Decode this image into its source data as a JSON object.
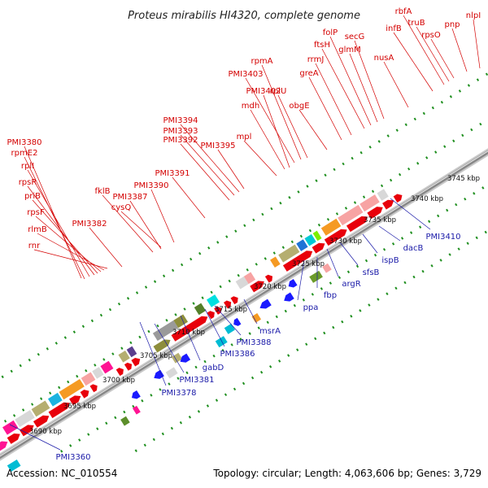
{
  "title": "Proteus mirabilis HI4320, complete genome",
  "footer": {
    "accession": "Accession: NC_010554",
    "summary": "Topology: circular; Length: 4,063,606 bp; Genes: 3,729"
  },
  "scale_labels": [
    "3690 kbp",
    "3695 kbp",
    "3700 kbp",
    "3705 kbp",
    "3710 kbp",
    "3715 kbp",
    "3720 kbp",
    "3725 kbp",
    "3730 kbp",
    "3735 kbp",
    "3740 kbp",
    "3745 kbp"
  ],
  "forward_genes": [
    "PMI3380",
    "rpmE2",
    "rplI",
    "rpsR",
    "priB",
    "rpsF",
    "rlmB",
    "rnr",
    "PMI3382",
    "fklB",
    "PMI3387",
    "cysQ",
    "PMI3390",
    "PMI3391",
    "PMI3392",
    "PMI3393",
    "PMI3394",
    "PMI3395",
    "mpl",
    "mdh",
    "PMI3402",
    "PMI3403",
    "rpmA",
    "rplU",
    "obgE",
    "greA",
    "rrmJ",
    "ftsH",
    "folP",
    "glmM",
    "secG",
    "nusA",
    "infB",
    "rbfA",
    "truB",
    "rpsO",
    "pnp",
    "nlpI"
  ],
  "reverse_genes": [
    "PMI3360",
    "PMI3378",
    "PMI3381",
    "gabD",
    "PMI3386",
    "PMI3388",
    "msrA",
    "ppa",
    "fbp",
    "argR",
    "sfsB",
    "ispB",
    "dacB",
    "PMI3410"
  ],
  "colors": {
    "forward_label": "#d40000",
    "reverse_label": "#1a1aa8",
    "cds": "#e8000b",
    "trna": "#ff1493",
    "rrna": "#00bcd4",
    "dna_backbone": "#888888",
    "tick": "#1f8f1f"
  }
}
